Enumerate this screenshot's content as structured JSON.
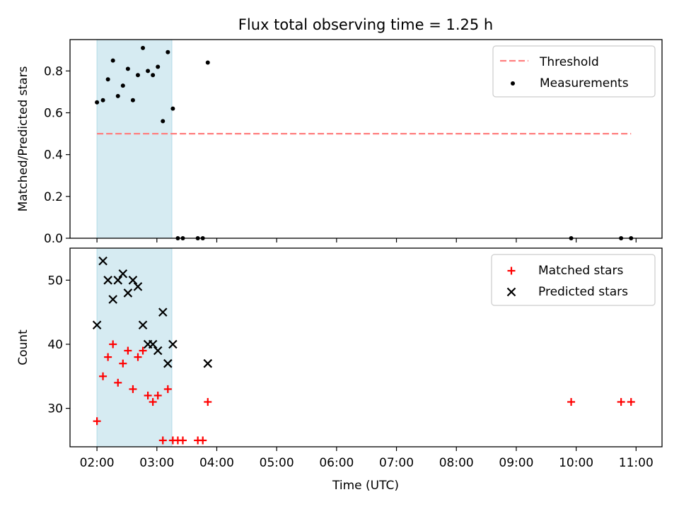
{
  "figure": {
    "title": "Flux total observing time = 1.25 h",
    "xlabel": "Time (UTC)"
  },
  "colors": {
    "shade": "#add8e6",
    "threshold": "#ff7f7f",
    "matched": "#ff0000",
    "predicted": "#000000",
    "measurement": "#000000"
  },
  "chart_data": [
    {
      "type": "scatter",
      "ylabel": "Matched/Predicted stars",
      "xlim": [
        "01:33",
        "11:26"
      ],
      "ylim": [
        0,
        0.95
      ],
      "yticks": [
        0.0,
        0.2,
        0.4,
        0.6,
        0.8
      ],
      "ytick_labels": [
        "0.0",
        "0.2",
        "0.4",
        "0.6",
        "0.8"
      ],
      "shaded_interval": [
        "02:00",
        "03:15"
      ],
      "legend_position": "upper right",
      "threshold": {
        "name": "Threshold",
        "value": 0.5,
        "x_range": [
          "02:00",
          "10:55"
        ],
        "style": "dashed"
      },
      "series": [
        {
          "name": "Measurements",
          "x": [
            "02:00",
            "02:06",
            "02:11",
            "02:16",
            "02:21",
            "02:26",
            "02:31",
            "02:36",
            "02:41",
            "02:46",
            "02:51",
            "02:56",
            "03:01",
            "03:06",
            "03:11",
            "03:16",
            "03:21",
            "03:26",
            "03:41",
            "03:46",
            "03:51",
            "09:55",
            "10:45",
            "10:55"
          ],
          "y": [
            0.65,
            0.66,
            0.76,
            0.85,
            0.68,
            0.73,
            0.81,
            0.66,
            0.78,
            0.91,
            0.8,
            0.78,
            0.82,
            0.56,
            0.89,
            0.62,
            0.0,
            0.0,
            0.0,
            0.0,
            0.84,
            0.0,
            0.0,
            0.0
          ]
        }
      ]
    },
    {
      "type": "scatter",
      "ylabel": "Count",
      "xlim": [
        "01:33",
        "11:26"
      ],
      "ylim": [
        24,
        55
      ],
      "yticks": [
        30,
        40,
        50
      ],
      "ytick_labels": [
        "30",
        "40",
        "50"
      ],
      "xticks": [
        "02:00",
        "03:00",
        "04:00",
        "05:00",
        "06:00",
        "07:00",
        "08:00",
        "09:00",
        "10:00",
        "11:00"
      ],
      "xtick_labels": [
        "02:00",
        "03:00",
        "04:00",
        "05:00",
        "06:00",
        "07:00",
        "08:00",
        "09:00",
        "10:00",
        "11:00"
      ],
      "shaded_interval": [
        "02:00",
        "03:15"
      ],
      "legend_position": "upper right",
      "series": [
        {
          "name": "Matched stars",
          "marker": "+",
          "x": [
            "02:00",
            "02:06",
            "02:11",
            "02:16",
            "02:21",
            "02:26",
            "02:31",
            "02:36",
            "02:41",
            "02:46",
            "02:51",
            "02:56",
            "03:01",
            "03:06",
            "03:11",
            "03:16",
            "03:21",
            "03:26",
            "03:41",
            "03:46",
            "03:51",
            "09:55",
            "10:45",
            "10:55"
          ],
          "y": [
            28,
            35,
            38,
            40,
            34,
            37,
            39,
            33,
            38,
            39,
            32,
            31,
            32,
            25,
            33,
            25,
            25,
            25,
            25,
            25,
            31,
            31,
            31,
            31
          ]
        },
        {
          "name": "Predicted stars",
          "marker": "x",
          "x": [
            "02:00",
            "02:06",
            "02:11",
            "02:16",
            "02:21",
            "02:26",
            "02:31",
            "02:36",
            "02:41",
            "02:46",
            "02:51",
            "02:56",
            "03:01",
            "03:06",
            "03:11",
            "03:16",
            "03:51"
          ],
          "y": [
            43,
            53,
            50,
            47,
            50,
            51,
            48,
            50,
            49,
            43,
            40,
            40,
            39,
            45,
            37,
            40,
            37
          ]
        }
      ]
    }
  ]
}
